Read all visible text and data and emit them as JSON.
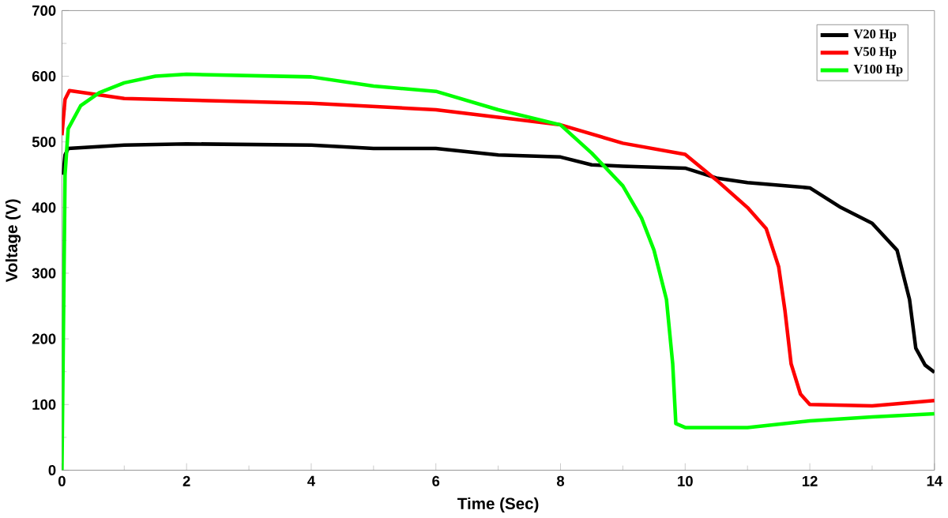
{
  "chart_data": {
    "type": "line",
    "xlabel": "Time (Sec)",
    "ylabel": "Voltage (V)",
    "xlim": [
      0,
      14
    ],
    "xticks": [
      0,
      2,
      4,
      6,
      8,
      10,
      12,
      14
    ],
    "ylim": [
      0,
      700
    ],
    "yticks": [
      0,
      100,
      200,
      300,
      400,
      500,
      600,
      700
    ],
    "legend": "top right",
    "grid": false,
    "marker": "none",
    "line_style": "solid",
    "series": [
      {
        "name": "V20 Hp",
        "color": "#000000",
        "x": [
          0.02,
          0.05,
          0.1,
          1,
          2,
          4,
          5,
          6,
          7,
          8,
          8.5,
          9,
          10,
          10.5,
          11,
          12,
          12.5,
          13,
          13.4,
          13.6,
          13.7,
          13.85,
          14
        ],
        "values": [
          450,
          480,
          490,
          495,
          497,
          495,
          490,
          490,
          480,
          477,
          465,
          463,
          460,
          445,
          438,
          430,
          400,
          376,
          335,
          260,
          186,
          160,
          149
        ]
      },
      {
        "name": "V50 Hp",
        "color": "#ff0000",
        "x": [
          0,
          0.05,
          0.12,
          1,
          4,
          6,
          8,
          9,
          10,
          10.5,
          11,
          11.3,
          11.5,
          11.6,
          11.7,
          11.85,
          12,
          13,
          14
        ],
        "values": [
          510,
          565,
          578,
          566,
          559,
          549,
          526,
          498,
          481,
          442,
          400,
          368,
          310,
          244,
          162,
          116,
          100,
          98,
          106
        ]
      },
      {
        "name": "V100 Hp",
        "color": "#00ff00",
        "x": [
          0,
          0.05,
          0.1,
          0.3,
          0.6,
          1,
          1.5,
          2,
          3,
          4,
          5,
          6,
          7,
          8,
          8.5,
          9,
          9.3,
          9.5,
          9.7,
          9.8,
          9.85,
          10,
          11,
          12,
          13,
          14
        ],
        "values": [
          0,
          450,
          520,
          555,
          575,
          590,
          600,
          603,
          601,
          599,
          585,
          577,
          549,
          526,
          483,
          433,
          384,
          335,
          260,
          162,
          71,
          65,
          65,
          75,
          81,
          86
        ]
      }
    ]
  }
}
